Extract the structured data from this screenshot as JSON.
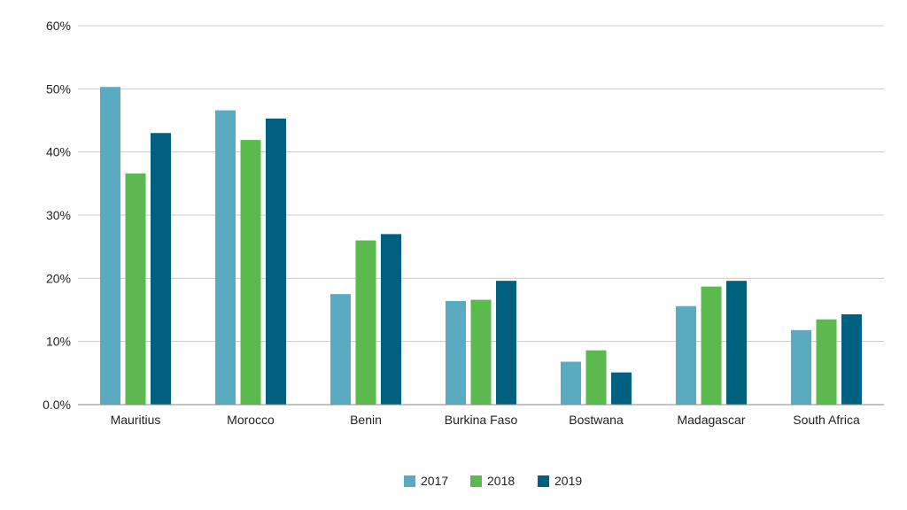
{
  "chart_data": {
    "type": "bar",
    "title": "",
    "xlabel": "",
    "ylabel": "",
    "categories": [
      "Mauritius",
      "Morocco",
      "Benin",
      "Burkina Faso",
      "Bostwana",
      "Madagascar",
      "South Africa"
    ],
    "series": [
      {
        "name": "2017",
        "color": "#5aabc2",
        "values": [
          50.3,
          46.6,
          17.5,
          16.4,
          6.8,
          15.6,
          11.8
        ]
      },
      {
        "name": "2018",
        "color": "#5bb94d",
        "values": [
          36.6,
          41.9,
          26.0,
          16.6,
          8.6,
          18.7,
          13.5
        ]
      },
      {
        "name": "2019",
        "color": "#00607f",
        "values": [
          43.0,
          45.3,
          27.0,
          19.6,
          5.1,
          19.6,
          14.3
        ]
      }
    ],
    "ylim": [
      0,
      60
    ],
    "yticks": [
      0,
      10,
      20,
      30,
      40,
      50,
      60
    ],
    "ytick_labels": [
      "0.0%",
      "10%",
      "20%",
      "30%",
      "40%",
      "50%",
      "60%"
    ],
    "grid": true,
    "legend_position": "bottom-center"
  }
}
